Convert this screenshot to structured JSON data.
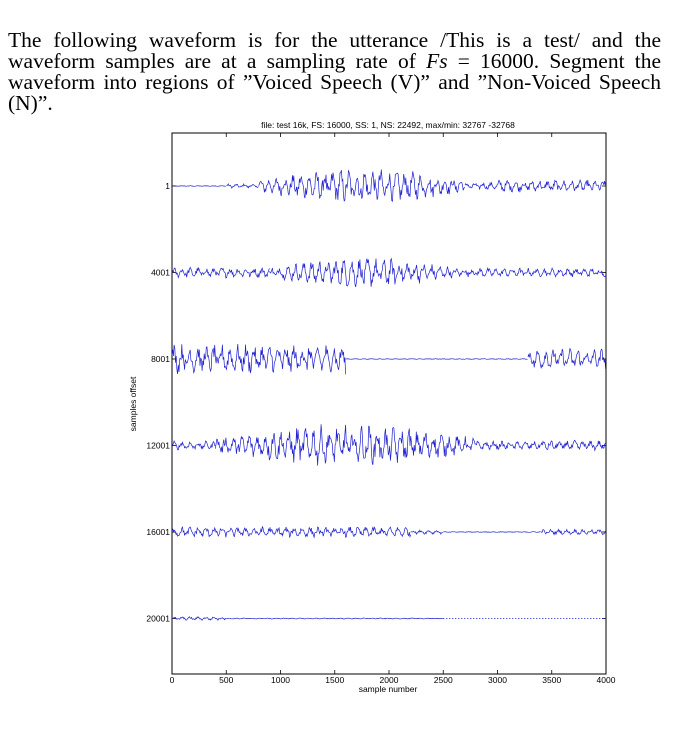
{
  "question": {
    "text_before": "The following waveform is for the utterance /This is a test/ and the waveform samples are at a sampling rate of ",
    "fs_symbol": "Fs",
    "text_after": " = 16000. Segment the waveform into regions of ”Voiced Speech (V)” and ”Non-Voiced Speech (N)”."
  },
  "chart_data": {
    "type": "line",
    "title": "file: test 16k, FS: 16000, SS: 1, NS: 22492, max/min: 32767 -32768",
    "xlabel": "sample number",
    "ylabel": "samples offset",
    "xlim": [
      0,
      4000
    ],
    "x_ticks": [
      "0",
      "500",
      "1000",
      "1500",
      "2000",
      "2500",
      "3000",
      "3500",
      "4000"
    ],
    "row_offsets": [
      "1",
      "4001",
      "8001",
      "12001",
      "16001",
      "20001"
    ],
    "line_color": "#1f1fd0",
    "rows": [
      {
        "offset": "1",
        "segments": [
          {
            "from": 0,
            "to": 500,
            "amp": 0.02
          },
          {
            "from": 500,
            "to": 800,
            "amp": 0.12
          },
          {
            "from": 800,
            "to": 2700,
            "amp": 1.0,
            "envelope": "bulge"
          },
          {
            "from": 2700,
            "to": 3000,
            "amp": 0.2
          },
          {
            "from": 3000,
            "to": 4000,
            "amp": 0.35
          }
        ]
      },
      {
        "offset": "4001",
        "segments": [
          {
            "from": 0,
            "to": 900,
            "amp": 0.3
          },
          {
            "from": 900,
            "to": 2600,
            "amp": 0.85,
            "envelope": "bulge"
          },
          {
            "from": 2600,
            "to": 4000,
            "amp": 0.25
          }
        ]
      },
      {
        "offset": "8001",
        "segments": [
          {
            "from": 0,
            "to": 1600,
            "amp": 0.85
          },
          {
            "from": 1600,
            "to": 3280,
            "amp": 0.02
          },
          {
            "from": 3280,
            "to": 4000,
            "amp": 0.6
          }
        ]
      },
      {
        "offset": "12001",
        "segments": [
          {
            "from": 0,
            "to": 400,
            "amp": 0.25
          },
          {
            "from": 400,
            "to": 2800,
            "amp": 1.2,
            "envelope": "bulge"
          },
          {
            "from": 2800,
            "to": 3400,
            "amp": 0.25
          },
          {
            "from": 3400,
            "to": 4000,
            "amp": 0.3
          }
        ]
      },
      {
        "offset": "16001",
        "segments": [
          {
            "from": 0,
            "to": 2200,
            "amp": 0.3
          },
          {
            "from": 2200,
            "to": 2500,
            "amp": 0.12
          },
          {
            "from": 2500,
            "to": 3400,
            "amp": 0.02
          },
          {
            "from": 3400,
            "to": 4000,
            "amp": 0.15
          }
        ]
      },
      {
        "offset": "20001",
        "segments": [
          {
            "from": 0,
            "to": 500,
            "amp": 0.1
          },
          {
            "from": 500,
            "to": 2500,
            "amp": 0.03
          },
          {
            "from": 2500,
            "to": 4000,
            "amp": 0.0,
            "style": "dotted"
          }
        ]
      }
    ]
  }
}
